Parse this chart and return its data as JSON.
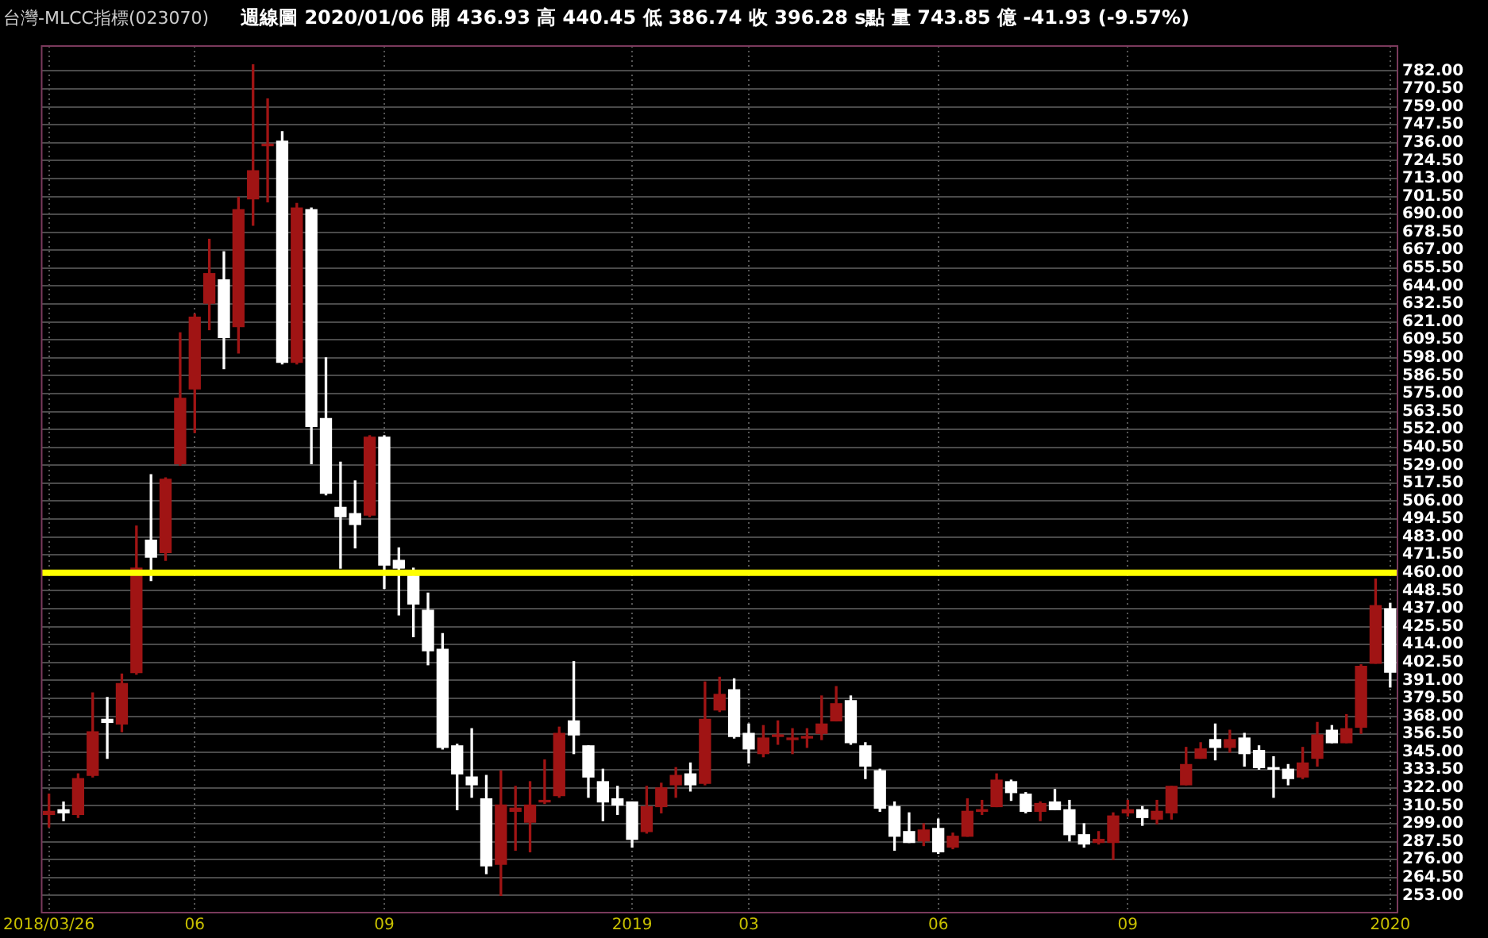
{
  "chart_data": {
    "type": "candlestick",
    "title": "台灣-MLCC指標(023070)",
    "subtitle": "週線圖  2020/01/06  開 436.93  高 440.45  低 386.74  收 396.28 s點  量 743.85 億  -41.93 (-9.57%)",
    "categories": [
      "2018/03/26",
      null,
      null,
      null,
      null,
      null,
      null,
      null,
      null,
      null,
      "06",
      null,
      null,
      null,
      null,
      null,
      null,
      null,
      null,
      null,
      null,
      null,
      null,
      "09",
      null,
      null,
      null,
      null,
      null,
      null,
      null,
      null,
      null,
      null,
      null,
      null,
      null,
      null,
      null,
      null,
      "2019",
      null,
      null,
      null,
      null,
      null,
      null,
      null,
      "03",
      null,
      null,
      null,
      null,
      null,
      null,
      null,
      null,
      null,
      null,
      null,
      null,
      "06",
      null,
      null,
      null,
      null,
      null,
      null,
      null,
      null,
      null,
      null,
      null,
      null,
      "09",
      null,
      null,
      null,
      null,
      null,
      null,
      null,
      null,
      null,
      null,
      null,
      null,
      null,
      null,
      null,
      null,
      null,
      "2020"
    ],
    "ohlc": [
      [
        305,
        318,
        297,
        307
      ],
      [
        308,
        313,
        301,
        306
      ],
      [
        305,
        331,
        303,
        328
      ],
      [
        330,
        383,
        329,
        358
      ],
      [
        366,
        380,
        341,
        364
      ],
      [
        363,
        395,
        358,
        389
      ],
      [
        396,
        490,
        395,
        463
      ],
      [
        481,
        523,
        455,
        470
      ],
      [
        473,
        521,
        468,
        520
      ],
      [
        530,
        614,
        529,
        572
      ],
      [
        578,
        626,
        550,
        624
      ],
      [
        633,
        674,
        616,
        652
      ],
      [
        648,
        666,
        591,
        611
      ],
      [
        618,
        701,
        601,
        693
      ],
      [
        700,
        786,
        683,
        718
      ],
      [
        734,
        764,
        698,
        735
      ],
      [
        737,
        743,
        594,
        595
      ],
      [
        595,
        697,
        594,
        694
      ],
      [
        693,
        694,
        530,
        554
      ],
      [
        559,
        598,
        510,
        511
      ],
      [
        502,
        531,
        463,
        496
      ],
      [
        498,
        519,
        476,
        491
      ],
      [
        497,
        548,
        496,
        547
      ],
      [
        547,
        548,
        450,
        465
      ],
      [
        468,
        476,
        433,
        463
      ],
      [
        458,
        463,
        419,
        440
      ],
      [
        436,
        447,
        401,
        410
      ],
      [
        411,
        421,
        347,
        348
      ],
      [
        349,
        350,
        308,
        331
      ],
      [
        329,
        360,
        316,
        324
      ],
      [
        315,
        330,
        267,
        272
      ],
      [
        273,
        333,
        253,
        311
      ],
      [
        307,
        323,
        282,
        309
      ],
      [
        300,
        326,
        281,
        311
      ],
      [
        313,
        340,
        312,
        314
      ],
      [
        317,
        361,
        316,
        357
      ],
      [
        365,
        403,
        344,
        356
      ],
      [
        349,
        349,
        316,
        329
      ],
      [
        326,
        334,
        301,
        313
      ],
      [
        315,
        323,
        305,
        311
      ],
      [
        313,
        313,
        284,
        289
      ],
      [
        294,
        323,
        293,
        310
      ],
      [
        310,
        325,
        306,
        322
      ],
      [
        324,
        335,
        316,
        330
      ],
      [
        331,
        338,
        320,
        324
      ],
      [
        325,
        390,
        324,
        366
      ],
      [
        372,
        393,
        371,
        382
      ],
      [
        385,
        392,
        354,
        355
      ],
      [
        357,
        363,
        338,
        347
      ],
      [
        344,
        362,
        342,
        354
      ],
      [
        355,
        365,
        350,
        356
      ],
      [
        353,
        360,
        344,
        354
      ],
      [
        354,
        360,
        348,
        355
      ],
      [
        357,
        381,
        353,
        363
      ],
      [
        365,
        387,
        365,
        376
      ],
      [
        378,
        381,
        350,
        351
      ],
      [
        349,
        351,
        328,
        336
      ],
      [
        333,
        334,
        307,
        309
      ],
      [
        310,
        313,
        282,
        291
      ],
      [
        294,
        306,
        287,
        287
      ],
      [
        288,
        299,
        285,
        295
      ],
      [
        296,
        302,
        280,
        281
      ],
      [
        284,
        293,
        283,
        291
      ],
      [
        291,
        315,
        291,
        307
      ],
      [
        307,
        314,
        305,
        308
      ],
      [
        310,
        331,
        310,
        327
      ],
      [
        326,
        327,
        314,
        319
      ],
      [
        318,
        319,
        306,
        307
      ],
      [
        307,
        313,
        301,
        312
      ],
      [
        313,
        321,
        308,
        308
      ],
      [
        308,
        314,
        288,
        292
      ],
      [
        292,
        299,
        284,
        286
      ],
      [
        287,
        294,
        286,
        289
      ],
      [
        287,
        306,
        276,
        304
      ],
      [
        306,
        314,
        304,
        308
      ],
      [
        308,
        310,
        298,
        303
      ],
      [
        302,
        314,
        299,
        307
      ],
      [
        306,
        323,
        302,
        323
      ],
      [
        324,
        348,
        324,
        337
      ],
      [
        341,
        351,
        341,
        347
      ],
      [
        353,
        363,
        340,
        348
      ],
      [
        348,
        359,
        345,
        353
      ],
      [
        354,
        357,
        336,
        344
      ],
      [
        346,
        349,
        334,
        335
      ],
      [
        335,
        342,
        316,
        334
      ],
      [
        334,
        337,
        324,
        328
      ],
      [
        329,
        348,
        328,
        338
      ],
      [
        341,
        364,
        336,
        356
      ],
      [
        359,
        362,
        351,
        351
      ],
      [
        351,
        369,
        351,
        360
      ],
      [
        361,
        401,
        357,
        400
      ],
      [
        402,
        456,
        402,
        439
      ],
      [
        436.93,
        440.45,
        386.74,
        396.28
      ]
    ],
    "colors": [
      "#a01414",
      "#ffffff",
      "#a01414",
      "#a01414",
      "#ffffff",
      "#a01414",
      "#a01414",
      "#ffffff",
      "#a01414",
      "#a01414",
      "#a01414",
      "#a01414",
      "#ffffff",
      "#a01414",
      "#a01414",
      "#a01414",
      "#ffffff",
      "#a01414",
      "#ffffff",
      "#ffffff",
      "#ffffff",
      "#ffffff",
      "#a01414",
      "#ffffff",
      "#ffffff",
      "#ffffff",
      "#ffffff",
      "#ffffff",
      "#ffffff",
      "#ffffff",
      "#ffffff",
      "#a01414",
      "#a01414",
      "#a01414",
      "#a01414",
      "#a01414",
      "#ffffff",
      "#ffffff",
      "#ffffff",
      "#ffffff",
      "#ffffff",
      "#a01414",
      "#a01414",
      "#a01414",
      "#ffffff",
      "#a01414",
      "#a01414",
      "#ffffff",
      "#ffffff",
      "#a01414",
      "#a01414",
      "#a01414",
      "#a01414",
      "#a01414",
      "#a01414",
      "#ffffff",
      "#ffffff",
      "#ffffff",
      "#ffffff",
      "#ffffff",
      "#a01414",
      "#ffffff",
      "#a01414",
      "#a01414",
      "#a01414",
      "#a01414",
      "#ffffff",
      "#ffffff",
      "#a01414",
      "#ffffff",
      "#ffffff",
      "#ffffff",
      "#a01414",
      "#a01414",
      "#a01414",
      "#ffffff",
      "#a01414",
      "#a01414",
      "#a01414",
      "#a01414",
      "#ffffff",
      "#a01414",
      "#ffffff",
      "#ffffff",
      "#ffffff",
      "#ffffff",
      "#a01414",
      "#a01414",
      "#ffffff",
      "#a01414",
      "#a01414",
      "#a01414",
      "#ffffff"
    ],
    "ylim": [
      242,
      798
    ],
    "yticks": [
      {
        "value": 253,
        "label": "253.00"
      },
      {
        "value": 264.5,
        "label": "264.50"
      },
      {
        "value": 276,
        "label": "276.00"
      },
      {
        "value": 287.5,
        "label": "287.50"
      },
      {
        "value": 299,
        "label": "299.00"
      },
      {
        "value": 310.5,
        "label": "310.50"
      },
      {
        "value": 322,
        "label": "322.00"
      },
      {
        "value": 333.5,
        "label": "333.50"
      },
      {
        "value": 345,
        "label": "345.00"
      },
      {
        "value": 356.5,
        "label": "356.50"
      },
      {
        "value": 368,
        "label": "368.00"
      },
      {
        "value": 379.5,
        "label": "379.50"
      },
      {
        "value": 391,
        "label": "391.00"
      },
      {
        "value": 402.5,
        "label": "402.50"
      },
      {
        "value": 414,
        "label": "414.00"
      },
      {
        "value": 425.5,
        "label": "425.50"
      },
      {
        "value": 437,
        "label": "437.00"
      },
      {
        "value": 448.5,
        "label": "448.50"
      },
      {
        "value": 460,
        "label": "460.00"
      },
      {
        "value": 471.5,
        "label": "471.50"
      },
      {
        "value": 483,
        "label": "483.00"
      },
      {
        "value": 494.5,
        "label": "494.50"
      },
      {
        "value": 506,
        "label": "506.00"
      },
      {
        "value": 517.5,
        "label": "517.50"
      },
      {
        "value": 529,
        "label": "529.00"
      },
      {
        "value": 540.5,
        "label": "540.50"
      },
      {
        "value": 552,
        "label": "552.00"
      },
      {
        "value": 563.5,
        "label": "563.50"
      },
      {
        "value": 575,
        "label": "575.00"
      },
      {
        "value": 586.5,
        "label": "586.50"
      },
      {
        "value": 598,
        "label": "598.00"
      },
      {
        "value": 609.5,
        "label": "609.50"
      },
      {
        "value": 621,
        "label": "621.00"
      },
      {
        "value": 632.5,
        "label": "632.50"
      },
      {
        "value": 644,
        "label": "644.00"
      },
      {
        "value": 655.5,
        "label": "655.50"
      },
      {
        "value": 667,
        "label": "667.00"
      },
      {
        "value": 678.5,
        "label": "678.50"
      },
      {
        "value": 690,
        "label": "690.00"
      },
      {
        "value": 701.5,
        "label": "701.50"
      },
      {
        "value": 713,
        "label": "713.00"
      },
      {
        "value": 724.5,
        "label": "724.50"
      },
      {
        "value": 736,
        "label": "736.00"
      },
      {
        "value": 747.5,
        "label": "747.50"
      },
      {
        "value": 759,
        "label": "759.00"
      },
      {
        "value": 770.5,
        "label": "770.50"
      },
      {
        "value": 782,
        "label": "782.00"
      }
    ],
    "ref_lines": [
      {
        "axis": "y",
        "value": 460,
        "color": "#ffff00"
      }
    ],
    "grid": true,
    "legend": false
  }
}
